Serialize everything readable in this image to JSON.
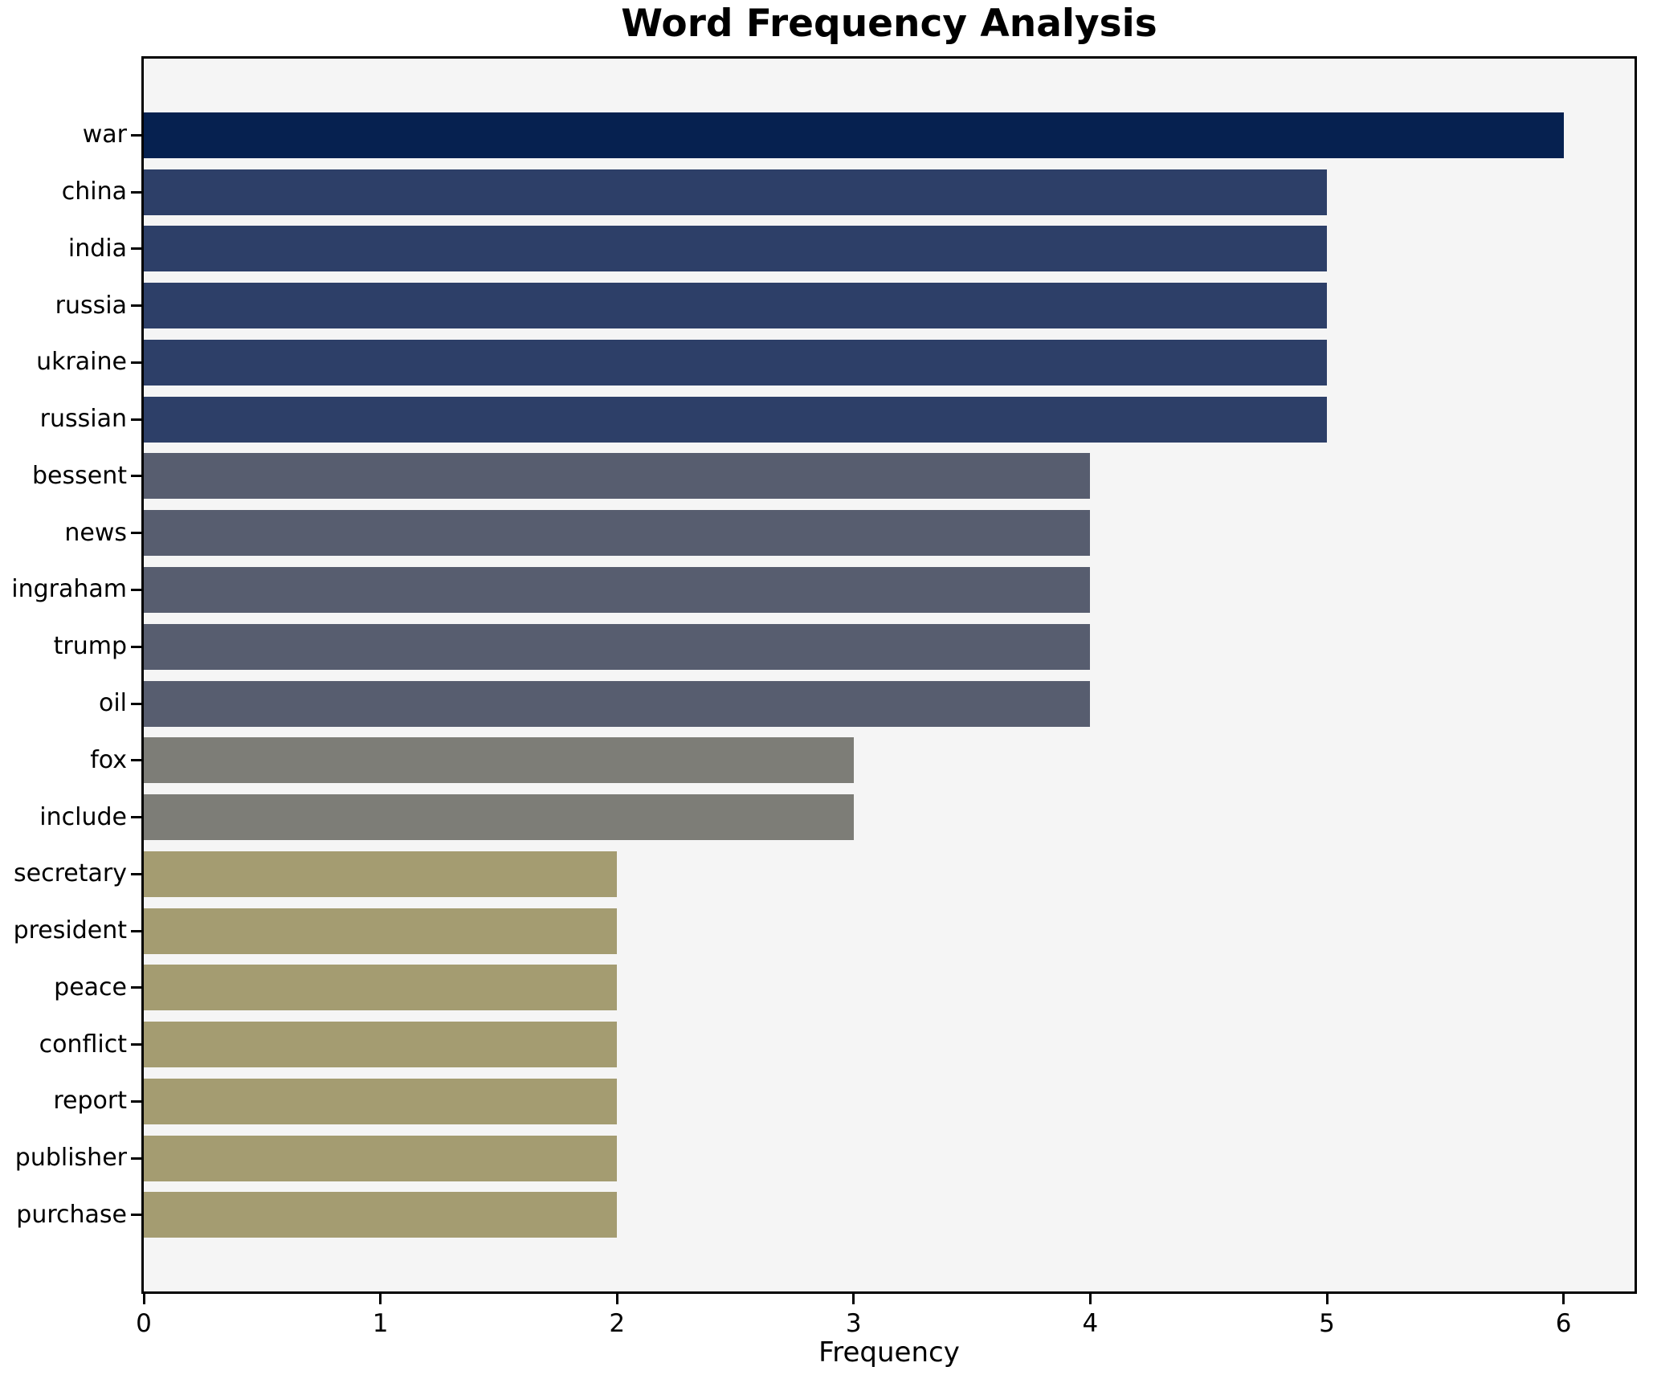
{
  "chart_data": {
    "type": "bar",
    "orientation": "horizontal",
    "title": "Word Frequency Analysis",
    "xlabel": "Frequency",
    "ylabel": "",
    "categories": [
      "war",
      "china",
      "india",
      "russia",
      "ukraine",
      "russian",
      "bessent",
      "news",
      "ingraham",
      "trump",
      "oil",
      "fox",
      "include",
      "secretary",
      "president",
      "peace",
      "conflict",
      "report",
      "publisher",
      "purchase"
    ],
    "values": [
      6,
      5,
      5,
      5,
      5,
      5,
      4,
      4,
      4,
      4,
      4,
      3,
      3,
      2,
      2,
      2,
      2,
      2,
      2,
      2
    ],
    "xticks": [
      "0",
      "1",
      "2",
      "3",
      "4",
      "5",
      "6"
    ],
    "xlim": [
      0,
      6.3
    ],
    "grid": false,
    "legend_position": "none",
    "plot_background": "#f5f5f5",
    "figure_background": "#ffffff",
    "spine_color": "#000000",
    "text_color": "#000000",
    "colors_by_value": {
      "6": "#062150",
      "5": "#2d3f68",
      "4": "#575d6f",
      "3": "#7d7d77",
      "2": "#a49c71"
    }
  }
}
